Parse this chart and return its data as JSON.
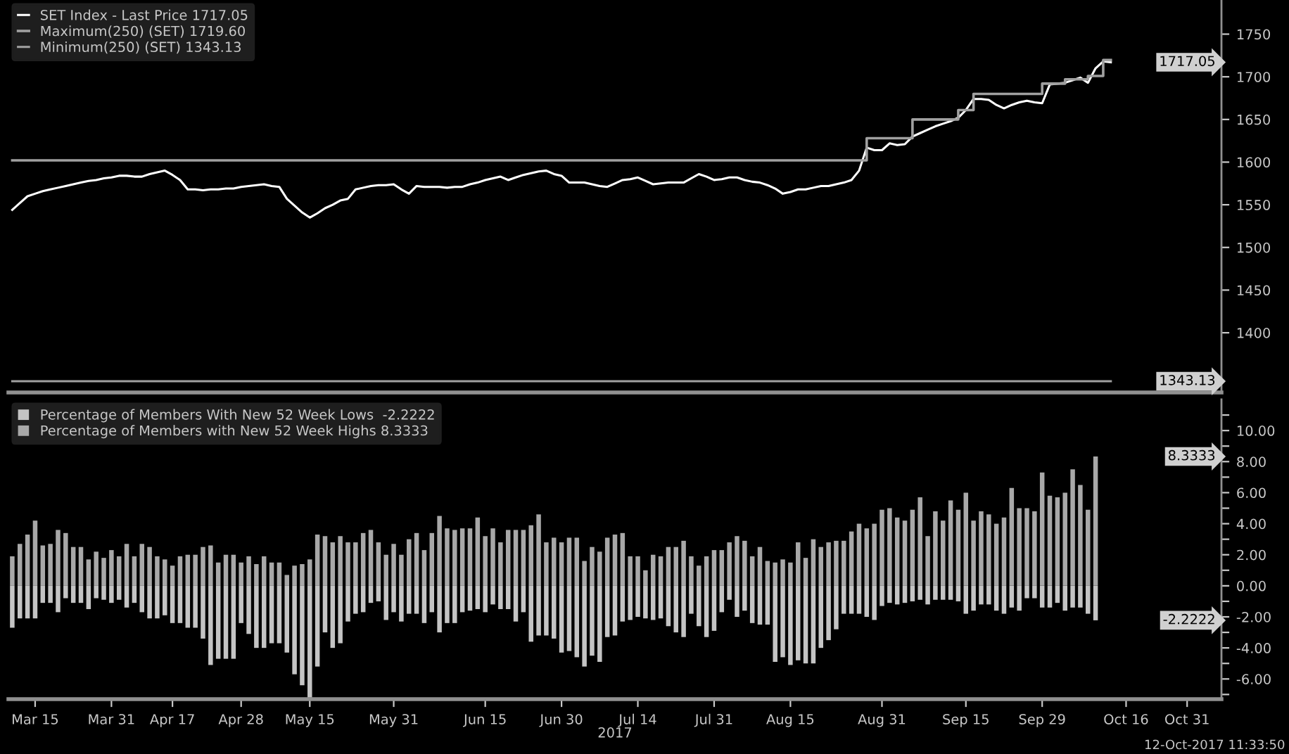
{
  "chart_data": [
    {
      "type": "line",
      "legend": "top left",
      "tick_labels": "y",
      "marker": "none",
      "line_style": "solid",
      "categories": [
        null,
        null,
        null,
        null,
        null,
        null,
        null,
        null,
        null,
        null,
        null,
        null,
        null,
        null,
        null,
        null,
        null,
        null,
        null,
        null,
        null,
        null,
        null,
        null,
        null,
        null,
        null,
        null,
        null,
        null,
        null,
        null,
        null,
        null,
        null,
        null,
        null,
        null,
        null,
        null,
        null,
        null,
        null,
        null,
        null,
        null,
        null,
        null,
        null,
        null,
        null,
        null,
        null,
        null,
        null,
        null,
        null,
        null,
        null,
        null,
        null,
        null,
        null,
        null,
        null,
        null,
        null,
        null,
        null,
        null,
        null,
        null,
        null,
        null,
        null,
        null,
        null,
        null,
        null,
        null,
        null,
        null,
        null,
        null,
        null,
        null,
        null,
        null,
        null,
        null,
        null,
        null,
        null,
        null,
        null,
        null,
        null,
        null,
        null,
        null,
        null,
        null,
        null,
        null,
        null,
        null,
        null,
        null,
        null,
        null,
        null,
        null,
        null,
        null,
        null,
        null,
        null,
        null,
        null,
        null,
        null,
        null,
        null,
        null,
        null,
        null,
        null,
        null,
        null,
        null,
        null,
        null,
        null,
        null,
        null,
        null,
        null,
        null,
        null,
        null,
        null,
        null,
        null,
        null,
        null
      ],
      "ylim": [
        1330,
        1790
      ],
      "yticks": [
        1400,
        1450,
        1500,
        1550,
        1600,
        1650,
        1700,
        1750
      ],
      "series": [
        {
          "name": "SET Index - Last Price 1717.05",
          "color": "#ffffff",
          "values": [
            1544,
            1552,
            1560,
            1563,
            1566,
            1568,
            1570,
            1572,
            1574,
            1576,
            1578,
            1579,
            1581,
            1582,
            1584,
            1584,
            1583,
            1583,
            1586,
            1588,
            1590,
            1585,
            1579,
            1568,
            1568,
            1567,
            1568,
            1568,
            1569,
            1569,
            1571,
            1572,
            1573,
            1574,
            1572,
            1571,
            1557,
            1549,
            1541,
            1535,
            1540,
            1546,
            1550,
            1555,
            1557,
            1568,
            1570,
            1572,
            1573,
            1573,
            1574,
            1568,
            1563,
            1572,
            1571,
            1571,
            1571,
            1570,
            1571,
            1571,
            1574,
            1576,
            1579,
            1581,
            1583,
            1579,
            1582,
            1585,
            1587,
            1589,
            1590,
            1586,
            1584,
            1576,
            1576,
            1576,
            1574,
            1572,
            1571,
            1575,
            1579,
            1580,
            1582,
            1578,
            1574,
            1575,
            1576,
            1576,
            1576,
            1581,
            1586,
            1583,
            1579,
            1580,
            1582,
            1582,
            1579,
            1577,
            1576,
            1573,
            1569,
            1563,
            1565,
            1568,
            1568,
            1570,
            1572,
            1572,
            1574,
            1576,
            1579,
            1590,
            1617,
            1614,
            1614,
            1622,
            1620,
            1621,
            1630,
            1634,
            1638,
            1642,
            1645,
            1648,
            1652,
            1661,
            1674,
            1674,
            1673,
            1667,
            1663,
            1667,
            1670,
            1672,
            1670,
            1669,
            1691,
            1692,
            1693,
            1696,
            1699,
            1693,
            1710,
            1718,
            1717.05
          ]
        },
        {
          "name": "Maximum(250) (SET) 1719.60",
          "color": "#a0a0a0",
          "type": "step",
          "values": [
            1602,
            1602,
            1602,
            1602,
            1602,
            1602,
            1602,
            1602,
            1602,
            1602,
            1602,
            1602,
            1602,
            1602,
            1602,
            1602,
            1602,
            1602,
            1602,
            1602,
            1602,
            1602,
            1602,
            1602,
            1602,
            1602,
            1602,
            1602,
            1602,
            1602,
            1602,
            1602,
            1602,
            1602,
            1602,
            1602,
            1602,
            1602,
            1602,
            1602,
            1602,
            1602,
            1602,
            1602,
            1602,
            1602,
            1602,
            1602,
            1602,
            1602,
            1602,
            1602,
            1602,
            1602,
            1602,
            1602,
            1602,
            1602,
            1602,
            1602,
            1602,
            1602,
            1602,
            1602,
            1602,
            1602,
            1602,
            1602,
            1602,
            1602,
            1602,
            1602,
            1602,
            1602,
            1602,
            1602,
            1602,
            1602,
            1602,
            1602,
            1602,
            1602,
            1602,
            1602,
            1602,
            1602,
            1602,
            1602,
            1602,
            1602,
            1602,
            1602,
            1602,
            1602,
            1602,
            1602,
            1602,
            1602,
            1602,
            1602,
            1602,
            1602,
            1602,
            1602,
            1602,
            1602,
            1602,
            1602,
            1602,
            1602,
            1602,
            1602,
            1628,
            1628,
            1628,
            1628,
            1628,
            1628,
            1650,
            1650,
            1650,
            1650,
            1650,
            1650,
            1661,
            1661,
            1680,
            1680,
            1680,
            1680,
            1680,
            1680,
            1680,
            1680,
            1680,
            1692,
            1692,
            1692,
            1697,
            1697,
            1697,
            1701,
            1701,
            1719.6,
            1719.6
          ]
        },
        {
          "name": "Minimum(250) (SET) 1343.13",
          "color": "#a0a0a0",
          "values": [
            1343.13,
            1343.13,
            1343.13,
            1343.13,
            1343.13,
            1343.13,
            1343.13,
            1343.13,
            1343.13,
            1343.13,
            1343.13,
            1343.13,
            1343.13,
            1343.13,
            1343.13,
            1343.13,
            1343.13,
            1343.13,
            1343.13,
            1343.13,
            1343.13,
            1343.13,
            1343.13,
            1343.13,
            1343.13,
            1343.13,
            1343.13,
            1343.13,
            1343.13,
            1343.13,
            1343.13,
            1343.13,
            1343.13,
            1343.13,
            1343.13,
            1343.13,
            1343.13,
            1343.13,
            1343.13,
            1343.13,
            1343.13,
            1343.13,
            1343.13,
            1343.13,
            1343.13,
            1343.13,
            1343.13,
            1343.13,
            1343.13,
            1343.13,
            1343.13,
            1343.13,
            1343.13,
            1343.13,
            1343.13,
            1343.13,
            1343.13,
            1343.13,
            1343.13,
            1343.13,
            1343.13,
            1343.13,
            1343.13,
            1343.13,
            1343.13,
            1343.13,
            1343.13,
            1343.13,
            1343.13,
            1343.13,
            1343.13,
            1343.13,
            1343.13,
            1343.13,
            1343.13,
            1343.13,
            1343.13,
            1343.13,
            1343.13,
            1343.13,
            1343.13,
            1343.13,
            1343.13,
            1343.13,
            1343.13,
            1343.13,
            1343.13,
            1343.13,
            1343.13,
            1343.13,
            1343.13,
            1343.13,
            1343.13,
            1343.13,
            1343.13,
            1343.13,
            1343.13,
            1343.13,
            1343.13,
            1343.13,
            1343.13,
            1343.13,
            1343.13,
            1343.13,
            1343.13,
            1343.13,
            1343.13,
            1343.13,
            1343.13,
            1343.13,
            1343.13,
            1343.13,
            1343.13,
            1343.13,
            1343.13,
            1343.13,
            1343.13,
            1343.13,
            1343.13,
            1343.13,
            1343.13,
            1343.13,
            1343.13,
            1343.13,
            1343.13,
            1343.13,
            1343.13,
            1343.13,
            1343.13,
            1343.13,
            1343.13,
            1343.13,
            1343.13,
            1343.13,
            1343.13,
            1343.13,
            1343.13,
            1343.13,
            1343.13,
            1343.13,
            1343.13,
            1343.13,
            1343.13,
            1343.13,
            1343.13
          ]
        }
      ],
      "annotations": [
        "1717.05",
        "1343.13"
      ]
    },
    {
      "type": "bar",
      "legend": "top left",
      "xlabel": "2017",
      "stacked": true,
      "categories": [
        null,
        null,
        null,
        "Mar 15",
        null,
        null,
        null,
        null,
        null,
        null,
        null,
        null,
        null,
        "Mar 31",
        null,
        null,
        null,
        null,
        null,
        null,
        null,
        "Apr 17",
        null,
        null,
        null,
        null,
        null,
        null,
        null,
        null,
        "Apr 28",
        null,
        null,
        null,
        null,
        null,
        null,
        null,
        null,
        "May 15",
        null,
        null,
        null,
        null,
        null,
        null,
        null,
        null,
        null,
        null,
        "May 31",
        null,
        null,
        null,
        null,
        null,
        null,
        null,
        null,
        null,
        null,
        null,
        "Jun 15",
        null,
        null,
        null,
        null,
        null,
        null,
        null,
        null,
        null,
        "Jun 30",
        null,
        null,
        null,
        null,
        null,
        null,
        null,
        null,
        null,
        "Jul 14",
        null,
        null,
        null,
        null,
        null,
        null,
        null,
        null,
        null,
        "Jul 31",
        null,
        null,
        null,
        null,
        null,
        null,
        null,
        null,
        null,
        "Aug 15",
        null,
        null,
        null,
        null,
        null,
        null,
        null,
        null,
        null,
        null,
        null,
        "Aug 31",
        null,
        null,
        null,
        null,
        null,
        null,
        null,
        null,
        null,
        null,
        "Sep 15",
        null,
        null,
        null,
        null,
        null,
        null,
        null,
        null,
        null,
        "Sep 29",
        null,
        null,
        null,
        null,
        null,
        null,
        null,
        null,
        null,
        null,
        "Oct 16",
        null,
        null,
        null,
        null,
        null,
        null,
        null,
        "Oct 31",
        null,
        null,
        null,
        null
      ],
      "ylim": [
        -7.3,
        12
      ],
      "yticks": [
        {
          "value": -7,
          "label": null
        },
        {
          "value": -6,
          "label": "-6.00"
        },
        {
          "value": -5,
          "label": null
        },
        {
          "value": -4,
          "label": "-4.00"
        },
        {
          "value": -3,
          "label": null
        },
        {
          "value": -2,
          "label": "-2.00"
        },
        {
          "value": -1,
          "label": null
        },
        {
          "value": 0,
          "label": "0.00"
        },
        {
          "value": 1,
          "label": null
        },
        {
          "value": 2,
          "label": "2.00"
        },
        {
          "value": 3,
          "label": null
        },
        {
          "value": 4,
          "label": "4.00"
        },
        {
          "value": 5,
          "label": null
        },
        {
          "value": 6,
          "label": "6.00"
        },
        {
          "value": 7,
          "label": null
        },
        {
          "value": 8,
          "label": "8.00"
        },
        {
          "value": 9,
          "label": null
        },
        {
          "value": 10,
          "label": "10.00"
        },
        {
          "value": 11,
          "label": null
        }
      ],
      "series": [
        {
          "name": "Percentage of Members With New 52 Week Lows  -2.2222",
          "color": "#c4c4c4",
          "values": [
            -2.7,
            -2.1,
            -2.1,
            -2.1,
            -1.1,
            -1.1,
            -1.7,
            -0.8,
            -1.1,
            -1.1,
            -1.5,
            -0.8,
            -0.9,
            -1.1,
            -0.9,
            -1.4,
            -1.1,
            -1.7,
            -2.1,
            -2.1,
            -1.9,
            -2.4,
            -2.4,
            -2.7,
            -2.7,
            -3.4,
            -5.1,
            -4.7,
            -4.7,
            -4.7,
            -2.4,
            -3.1,
            -4.0,
            -4.0,
            -3.7,
            -3.7,
            -4.3,
            -5.7,
            -6.4,
            -7.2,
            -5.2,
            -3.0,
            -4.0,
            -3.7,
            -2.3,
            -1.8,
            -1.7,
            -1.1,
            -1.0,
            -2.2,
            -1.7,
            -2.3,
            -1.8,
            -1.8,
            -2.4,
            -1.7,
            -3.0,
            -2.4,
            -2.4,
            -1.7,
            -1.6,
            -1.5,
            -1.7,
            -1.2,
            -1.5,
            -1.5,
            -2.3,
            -1.7,
            -3.6,
            -3.2,
            -3.2,
            -3.4,
            -4.3,
            -4.2,
            -4.6,
            -5.2,
            -4.5,
            -4.9,
            -3.3,
            -3.2,
            -2.3,
            -2.2,
            -2.0,
            -2.1,
            -2.2,
            -2.1,
            -2.6,
            -3.0,
            -3.3,
            -1.8,
            -2.6,
            -3.3,
            -2.9,
            -1.7,
            -0.9,
            -2.0,
            -1.6,
            -2.4,
            -2.5,
            -2.5,
            -4.9,
            -4.6,
            -5.1,
            -4.8,
            -5.0,
            -5.0,
            -4.0,
            -3.5,
            -2.8,
            -1.8,
            -1.8,
            -1.8,
            -2.0,
            -2.2,
            -1.3,
            -1.1,
            -1.2,
            -1.1,
            -1.0,
            -0.9,
            -1.2,
            -0.9,
            -0.9,
            -0.9,
            -1.0,
            -1.8,
            -1.6,
            -1.2,
            -1.2,
            -1.6,
            -1.8,
            -1.4,
            -1.6,
            -0.8,
            -0.8,
            -1.4,
            -1.4,
            -1.1,
            -1.6,
            -1.4,
            -1.4,
            -1.8,
            -2.2222,
            null,
            null,
            null,
            null,
            null,
            null,
            null,
            null,
            null,
            null,
            null,
            null,
            null,
            null,
            null,
            null
          ]
        },
        {
          "name": "Percentage of Members with New 52 Week Highs 8.3333",
          "color": "#a8a8a8",
          "values": [
            1.9,
            2.7,
            3.3,
            4.2,
            2.6,
            2.7,
            3.6,
            3.4,
            2.5,
            2.5,
            1.7,
            2.2,
            1.8,
            2.3,
            1.9,
            2.7,
            1.9,
            2.7,
            2.5,
            1.9,
            1.7,
            1.3,
            1.9,
            2.0,
            2.0,
            2.5,
            2.6,
            1.5,
            2.0,
            2.0,
            1.5,
            1.9,
            1.4,
            1.9,
            1.5,
            1.5,
            0.7,
            1.3,
            1.4,
            1.7,
            3.3,
            3.2,
            2.8,
            3.2,
            2.8,
            2.8,
            3.4,
            3.6,
            2.8,
            2.0,
            2.7,
            2.0,
            3.0,
            3.4,
            2.3,
            3.4,
            4.5,
            3.7,
            3.6,
            3.7,
            3.7,
            4.4,
            3.2,
            3.7,
            2.8,
            3.6,
            3.6,
            3.6,
            3.9,
            4.6,
            2.8,
            3.1,
            2.8,
            3.1,
            3.1,
            1.6,
            2.5,
            2.2,
            3.1,
            3.3,
            3.4,
            1.9,
            1.9,
            1.0,
            2.0,
            1.9,
            2.5,
            2.5,
            2.9,
            1.9,
            1.3,
            1.9,
            2.3,
            2.3,
            2.8,
            3.2,
            2.9,
            1.9,
            2.5,
            1.6,
            1.5,
            1.7,
            1.5,
            2.8,
            1.8,
            3.0,
            2.5,
            2.8,
            2.9,
            2.9,
            3.5,
            4.0,
            3.7,
            4.0,
            4.9,
            5.0,
            4.4,
            4.2,
            4.9,
            5.7,
            3.2,
            4.8,
            4.2,
            5.5,
            4.9,
            6.0,
            4.2,
            4.8,
            4.6,
            4.0,
            4.4,
            6.3,
            5.0,
            5.0,
            4.8,
            7.3,
            5.8,
            5.7,
            6.0,
            7.5,
            6.5,
            4.9,
            8.3333,
            null,
            null,
            null,
            null,
            null,
            null,
            null,
            null,
            null,
            null,
            null,
            null,
            null,
            null,
            null,
            null
          ]
        }
      ],
      "annotations": [
        "8.3333",
        "-2.2222",
        "12-Oct-2017 11:33:50"
      ]
    }
  ]
}
